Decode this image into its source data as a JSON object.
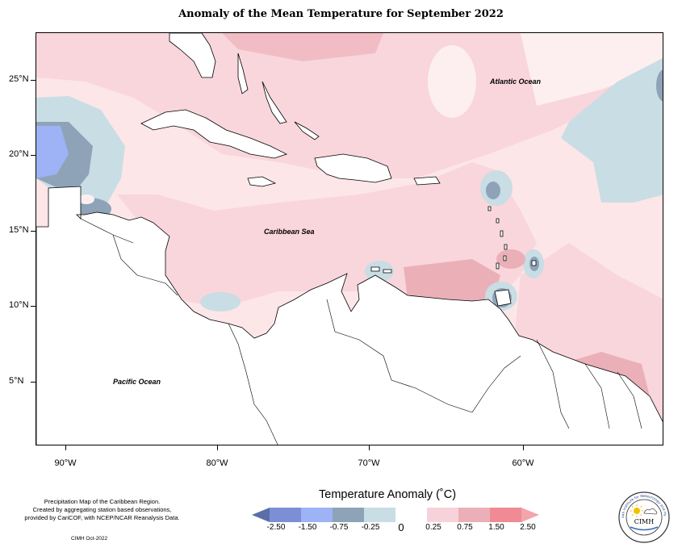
{
  "title": "Anomaly of the Mean Temperature for September 2022",
  "ocean_labels": {
    "atlantic": "Atlantic Ocean",
    "caribbean": "Caribbean Sea",
    "pacific": "Pacific Ocean"
  },
  "axes": {
    "latitude_labels": [
      "25°N",
      "20°N",
      "15°N",
      "10°N",
      "5°N"
    ],
    "longitude_labels": [
      "90°W",
      "80°W",
      "70°W",
      "60°W"
    ]
  },
  "credits": {
    "line1": "Precipitation Map of the Caribbean Region.",
    "line2": "Created by aggregating station based observations,",
    "line3": "provided by CariCOF, with NCEP/NCAR Reanalysis Data.",
    "date": "CIMH Oct-2022"
  },
  "legend": {
    "title": "Temperature Anomaly (˚C)",
    "ticks": [
      "-2.50",
      "-1.50",
      "-0.75",
      "-0.25",
      "0",
      "0.25",
      "0.75",
      "1.50",
      "2.50"
    ],
    "colors": [
      "#5a6fa8",
      "#7c8fd6",
      "#9db3f5",
      "#8ea3b8",
      "#c9dde4",
      "#ffffff",
      "#f8d2da",
      "#ebb0b7",
      "#f08a95",
      "#f4a4ac"
    ]
  },
  "logo": {
    "text": "CIMH",
    "ring_text": "Caribbean Institute for Meteorology and Hydrology"
  }
}
